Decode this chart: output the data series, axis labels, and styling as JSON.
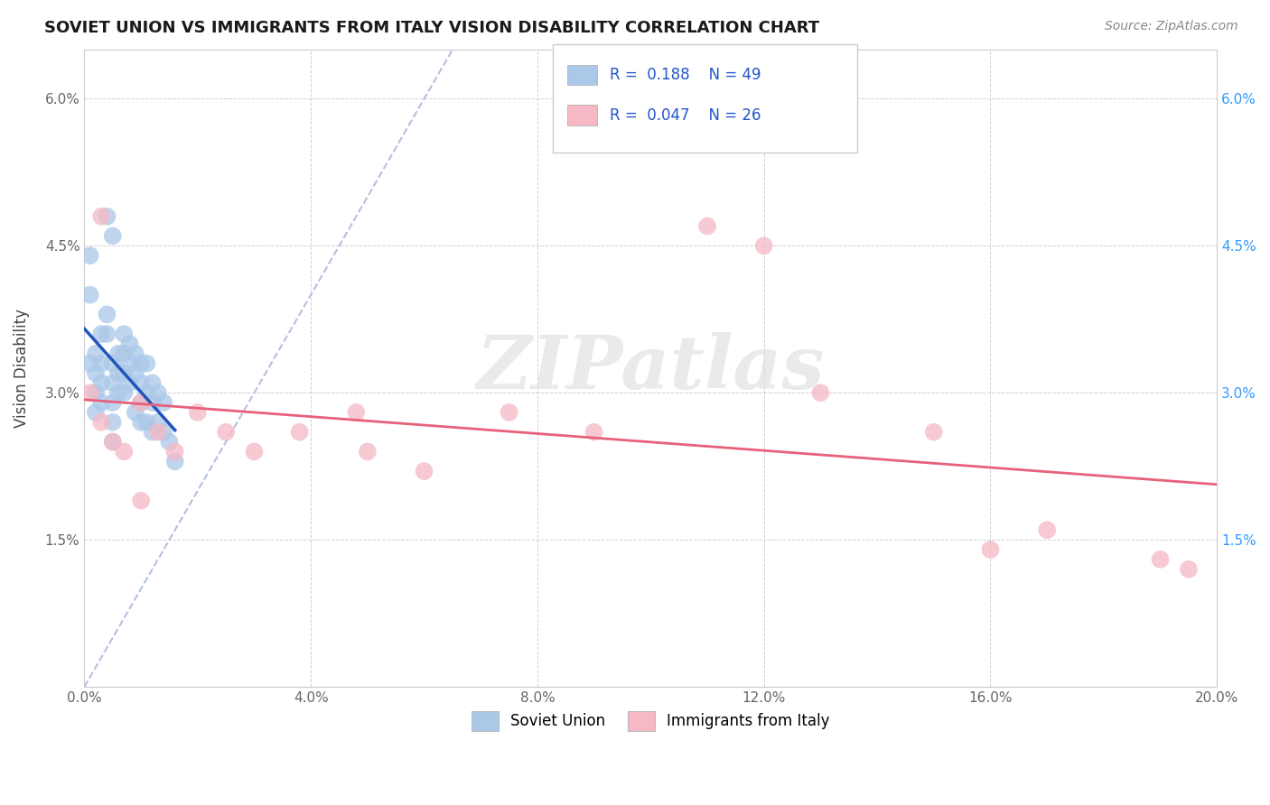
{
  "title": "SOVIET UNION VS IMMIGRANTS FROM ITALY VISION DISABILITY CORRELATION CHART",
  "source": "Source: ZipAtlas.com",
  "ylabel": "Vision Disability",
  "xlim": [
    0,
    0.2
  ],
  "ylim": [
    0,
    0.065
  ],
  "xticks": [
    0.0,
    0.04,
    0.08,
    0.12,
    0.16,
    0.2
  ],
  "yticks": [
    0.0,
    0.015,
    0.03,
    0.045,
    0.06
  ],
  "xticklabels": [
    "0.0%",
    "4.0%",
    "8.0%",
    "12.0%",
    "16.0%",
    "20.0%"
  ],
  "yticklabels_left": [
    "",
    "1.5%",
    "3.0%",
    "4.5%",
    "6.0%"
  ],
  "yticklabels_right": [
    "",
    "1.5%",
    "3.0%",
    "4.5%",
    "6.0%"
  ],
  "series1_label": "Soviet Union",
  "series1_R": "0.188",
  "series1_N": "49",
  "series1_color": "#aac8e8",
  "series1_line_color": "#2255bb",
  "series2_label": "Immigrants from Italy",
  "series2_R": "0.047",
  "series2_N": "26",
  "series2_color": "#f5b8c4",
  "series2_line_color": "#e8607a",
  "watermark_text": "ZIPatlas",
  "background_color": "#ffffff",
  "grid_color": "#cccccc",
  "legend_text_color": "#2255cc",
  "soviet_x": [
    0.001,
    0.001,
    0.001,
    0.002,
    0.002,
    0.002,
    0.002,
    0.003,
    0.003,
    0.003,
    0.003,
    0.004,
    0.004,
    0.005,
    0.005,
    0.005,
    0.005,
    0.005,
    0.006,
    0.006,
    0.006,
    0.007,
    0.007,
    0.007,
    0.007,
    0.008,
    0.008,
    0.008,
    0.009,
    0.009,
    0.009,
    0.01,
    0.01,
    0.01,
    0.01,
    0.011,
    0.011,
    0.011,
    0.012,
    0.012,
    0.012,
    0.013,
    0.013,
    0.014,
    0.014,
    0.015,
    0.016,
    0.004,
    0.005
  ],
  "soviet_y": [
    0.044,
    0.04,
    0.033,
    0.034,
    0.032,
    0.03,
    0.028,
    0.036,
    0.033,
    0.031,
    0.029,
    0.038,
    0.036,
    0.033,
    0.031,
    0.029,
    0.027,
    0.025,
    0.034,
    0.032,
    0.03,
    0.036,
    0.034,
    0.032,
    0.03,
    0.035,
    0.033,
    0.031,
    0.034,
    0.032,
    0.028,
    0.033,
    0.031,
    0.029,
    0.027,
    0.033,
    0.03,
    0.027,
    0.031,
    0.029,
    0.026,
    0.03,
    0.027,
    0.029,
    0.026,
    0.025,
    0.023,
    0.048,
    0.046
  ],
  "italy_x": [
    0.001,
    0.003,
    0.005,
    0.007,
    0.01,
    0.013,
    0.016,
    0.02,
    0.025,
    0.03,
    0.038,
    0.048,
    0.06,
    0.075,
    0.09,
    0.11,
    0.13,
    0.15,
    0.17,
    0.19,
    0.003,
    0.05,
    0.12,
    0.16,
    0.195,
    0.01
  ],
  "italy_y": [
    0.03,
    0.027,
    0.025,
    0.024,
    0.029,
    0.026,
    0.024,
    0.028,
    0.026,
    0.024,
    0.026,
    0.028,
    0.022,
    0.028,
    0.026,
    0.047,
    0.03,
    0.026,
    0.016,
    0.013,
    0.048,
    0.024,
    0.045,
    0.014,
    0.012,
    0.019
  ]
}
